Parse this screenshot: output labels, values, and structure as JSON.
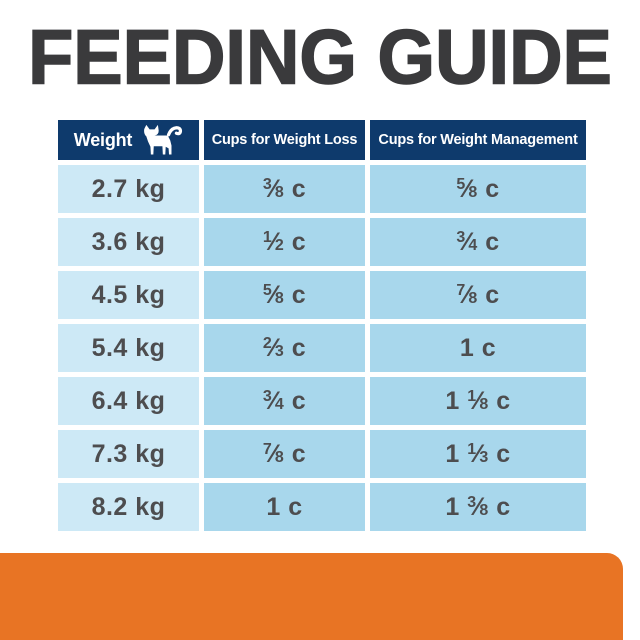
{
  "title": "FEEDING GUIDE",
  "colors": {
    "title_color": "#3a3a3c",
    "header_bg": "#0e3a6c",
    "header_text": "#ffffff",
    "col_weight_bg": "#cde9f6",
    "col_cups_bg": "#a8d7ec",
    "cell_text": "#4d4d4f",
    "accent_orange": "#e87424"
  },
  "table": {
    "headers": [
      {
        "label": "Weight",
        "icon": "cat-icon"
      },
      {
        "label": "Cups for Weight Loss"
      },
      {
        "label": "Cups for Weight Management"
      }
    ],
    "rows": [
      {
        "weight": "2.7 kg",
        "weight_loss": "3/8 c",
        "weight_management": "5/8 c"
      },
      {
        "weight": "3.6 kg",
        "weight_loss": "1/2 c",
        "weight_management": "3/4 c"
      },
      {
        "weight": "4.5 kg",
        "weight_loss": "5/8 c",
        "weight_management": "7/8 c"
      },
      {
        "weight": "5.4 kg",
        "weight_loss": "2/3 c",
        "weight_management": "1 c"
      },
      {
        "weight": "6.4 kg",
        "weight_loss": "3/4 c",
        "weight_management": "1 1/8 c"
      },
      {
        "weight": "7.3 kg",
        "weight_loss": "7/8 c",
        "weight_management": "1 1/3 c"
      },
      {
        "weight": "8.2 kg",
        "weight_loss": "1 c",
        "weight_management": "1 3/8 c"
      }
    ]
  },
  "chart_data": {
    "type": "table",
    "title": "FEEDING GUIDE",
    "columns": [
      "Weight",
      "Cups for Weight Loss",
      "Cups for Weight Management"
    ],
    "rows": [
      [
        "2.7 kg",
        "3/8 c",
        "5/8 c"
      ],
      [
        "3.6 kg",
        "1/2 c",
        "3/4 c"
      ],
      [
        "4.5 kg",
        "5/8 c",
        "7/8 c"
      ],
      [
        "5.4 kg",
        "2/3 c",
        "1 c"
      ],
      [
        "6.4 kg",
        "3/4 c",
        "1 1/8 c"
      ],
      [
        "7.3 kg",
        "7/8 c",
        "1 1/3 c"
      ],
      [
        "8.2 kg",
        "1 c",
        "1 3/8 c"
      ]
    ]
  }
}
